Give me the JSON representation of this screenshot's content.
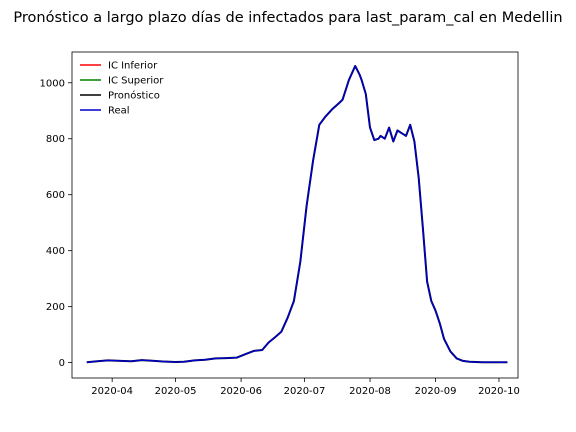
{
  "chart_data": {
    "type": "line",
    "title": "Pronóstico a largo plazo días de infectados para last_param_cal en Medellin",
    "xlabel": "",
    "ylabel": "",
    "xlim": [
      "2020-03-13",
      "2020-10-10"
    ],
    "ylim": [
      -55,
      1110
    ],
    "xticks": [
      {
        "date": "2020-04-01",
        "label": "2020-04"
      },
      {
        "date": "2020-05-01",
        "label": "2020-05"
      },
      {
        "date": "2020-06-01",
        "label": "2020-06"
      },
      {
        "date": "2020-07-01",
        "label": "2020-07"
      },
      {
        "date": "2020-08-01",
        "label": "2020-08"
      },
      {
        "date": "2020-09-01",
        "label": "2020-09"
      },
      {
        "date": "2020-10-01",
        "label": "2020-10"
      }
    ],
    "yticks": [
      0,
      200,
      400,
      600,
      800,
      1000
    ],
    "grid": false,
    "legend_position": "top-left",
    "series": [
      {
        "name": "IC Inferior",
        "color": "#ff0000",
        "draw": false
      },
      {
        "name": "IC Superior",
        "color": "#008000",
        "draw": false
      },
      {
        "name": "Pronóstico",
        "color": "#000000",
        "draw": true
      },
      {
        "name": "Real",
        "color": "#0000cc",
        "draw": true
      }
    ],
    "x": [
      "2020-03-20",
      "2020-03-25",
      "2020-03-30",
      "2020-04-05",
      "2020-04-10",
      "2020-04-15",
      "2020-04-20",
      "2020-04-25",
      "2020-05-01",
      "2020-05-05",
      "2020-05-10",
      "2020-05-15",
      "2020-05-20",
      "2020-05-25",
      "2020-05-30",
      "2020-06-03",
      "2020-06-07",
      "2020-06-11",
      "2020-06-14",
      "2020-06-17",
      "2020-06-20",
      "2020-06-23",
      "2020-06-26",
      "2020-06-29",
      "2020-07-02",
      "2020-07-05",
      "2020-07-08",
      "2020-07-11",
      "2020-07-14",
      "2020-07-17",
      "2020-07-19",
      "2020-07-22",
      "2020-07-25",
      "2020-07-27",
      "2020-07-28",
      "2020-07-30",
      "2020-08-01",
      "2020-08-03",
      "2020-08-05",
      "2020-08-06",
      "2020-08-08",
      "2020-08-10",
      "2020-08-12",
      "2020-08-14",
      "2020-08-16",
      "2020-08-18",
      "2020-08-20",
      "2020-08-22",
      "2020-08-24",
      "2020-08-26",
      "2020-08-28",
      "2020-08-30",
      "2020-09-01",
      "2020-09-03",
      "2020-09-05",
      "2020-09-08",
      "2020-09-11",
      "2020-09-14",
      "2020-09-17",
      "2020-09-20",
      "2020-09-23",
      "2020-09-26",
      "2020-09-29",
      "2020-10-02",
      "2020-10-05"
    ],
    "values": [
      1,
      5,
      8,
      6,
      5,
      9,
      7,
      4,
      2,
      3,
      8,
      10,
      15,
      16,
      18,
      30,
      42,
      45,
      72,
      90,
      110,
      160,
      220,
      360,
      560,
      720,
      850,
      880,
      905,
      925,
      940,
      1010,
      1060,
      1030,
      1010,
      960,
      840,
      795,
      800,
      810,
      800,
      840,
      790,
      830,
      820,
      810,
      850,
      790,
      660,
      480,
      290,
      220,
      185,
      140,
      85,
      40,
      15,
      6,
      3,
      2,
      1,
      1,
      1,
      1,
      1
    ]
  }
}
